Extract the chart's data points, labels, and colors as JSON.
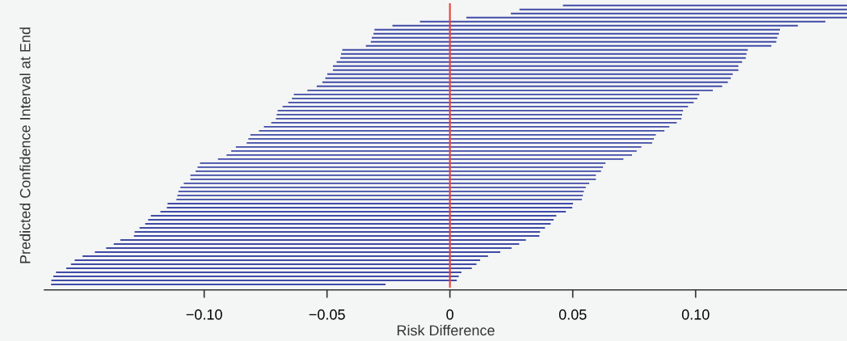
{
  "chart_data": {
    "type": "bar",
    "orientation": "horizontal",
    "xlabel": "Risk Difference",
    "ylabel": "Predicted Confidence Interval at End",
    "categories": [
      null,
      null,
      null,
      null,
      null,
      null,
      null,
      null,
      null,
      null,
      null,
      null,
      null,
      null,
      null,
      null,
      null,
      null,
      null,
      null,
      null,
      null,
      null,
      null,
      null,
      null,
      null,
      null,
      null,
      null,
      null,
      null,
      null,
      null,
      null,
      null,
      null,
      null,
      null,
      null,
      null,
      null,
      null,
      null,
      null,
      null,
      null,
      null,
      null,
      null,
      null,
      null,
      null,
      null,
      null,
      null,
      null,
      null,
      null,
      null,
      null,
      null,
      null,
      null,
      null,
      null,
      null,
      null,
      null,
      null
    ],
    "base": [
      0.046,
      0.0283,
      0.0248,
      0.0067,
      -0.0122,
      -0.0234,
      -0.0307,
      -0.0311,
      -0.0318,
      -0.0322,
      -0.0342,
      -0.0438,
      -0.0443,
      -0.0446,
      -0.0461,
      -0.0476,
      -0.0476,
      -0.0499,
      -0.0507,
      -0.0519,
      -0.0542,
      -0.058,
      -0.0635,
      -0.0643,
      -0.0658,
      -0.0681,
      -0.0701,
      -0.0705,
      -0.0708,
      -0.0727,
      -0.0757,
      -0.0777,
      -0.0812,
      -0.082,
      -0.0827,
      -0.0871,
      -0.089,
      -0.0909,
      -0.0944,
      -0.1017,
      -0.1027,
      -0.1035,
      -0.1056,
      -0.1056,
      -0.1083,
      -0.1097,
      -0.1105,
      -0.1109,
      -0.1113,
      -0.1149,
      -0.1152,
      -0.1178,
      -0.1217,
      -0.1228,
      -0.124,
      -0.1263,
      -0.1283,
      -0.1286,
      -0.1341,
      -0.1368,
      -0.1399,
      -0.1445,
      -0.1495,
      -0.1527,
      -0.1542,
      -0.1561,
      -0.1603,
      -0.1614,
      -0.1622,
      -0.1623
    ],
    "values": [
      0.1156,
      0.1333,
      0.1368,
      0.1549,
      0.165,
      0.165,
      0.165,
      0.165,
      0.165,
      0.165,
      0.165,
      0.165,
      0.165,
      0.165,
      0.165,
      0.165,
      0.165,
      0.165,
      0.165,
      0.165,
      0.165,
      0.165,
      0.165,
      0.165,
      0.165,
      0.165,
      0.165,
      0.165,
      0.165,
      0.165,
      0.165,
      0.165,
      0.165,
      0.165,
      0.165,
      0.165,
      0.165,
      0.165,
      0.165,
      0.165,
      0.165,
      0.165,
      0.165,
      0.165,
      0.165,
      0.165,
      0.165,
      0.165,
      0.165,
      0.165,
      0.165,
      0.165,
      0.165,
      0.165,
      0.165,
      0.165,
      0.165,
      0.165,
      0.165,
      0.165,
      0.165,
      0.165,
      0.165,
      0.165,
      0.165,
      0.165,
      0.165,
      0.165,
      0.165,
      0.1361
    ],
    "color": "#3f4aa6",
    "xlim": [
      -0.165,
      0.1616
    ],
    "xticks": [
      {
        "value": -0.1,
        "label": "−0.10"
      },
      {
        "value": -0.05,
        "label": "−0.05"
      },
      0,
      {
        "value": 0.05,
        "label": "0.05"
      },
      {
        "value": 0.1,
        "label": "0.10"
      }
    ],
    "ref_lines": [
      {
        "axis": "x",
        "value": 0,
        "color": "#e8413c"
      }
    ],
    "tick_labels": "x"
  }
}
